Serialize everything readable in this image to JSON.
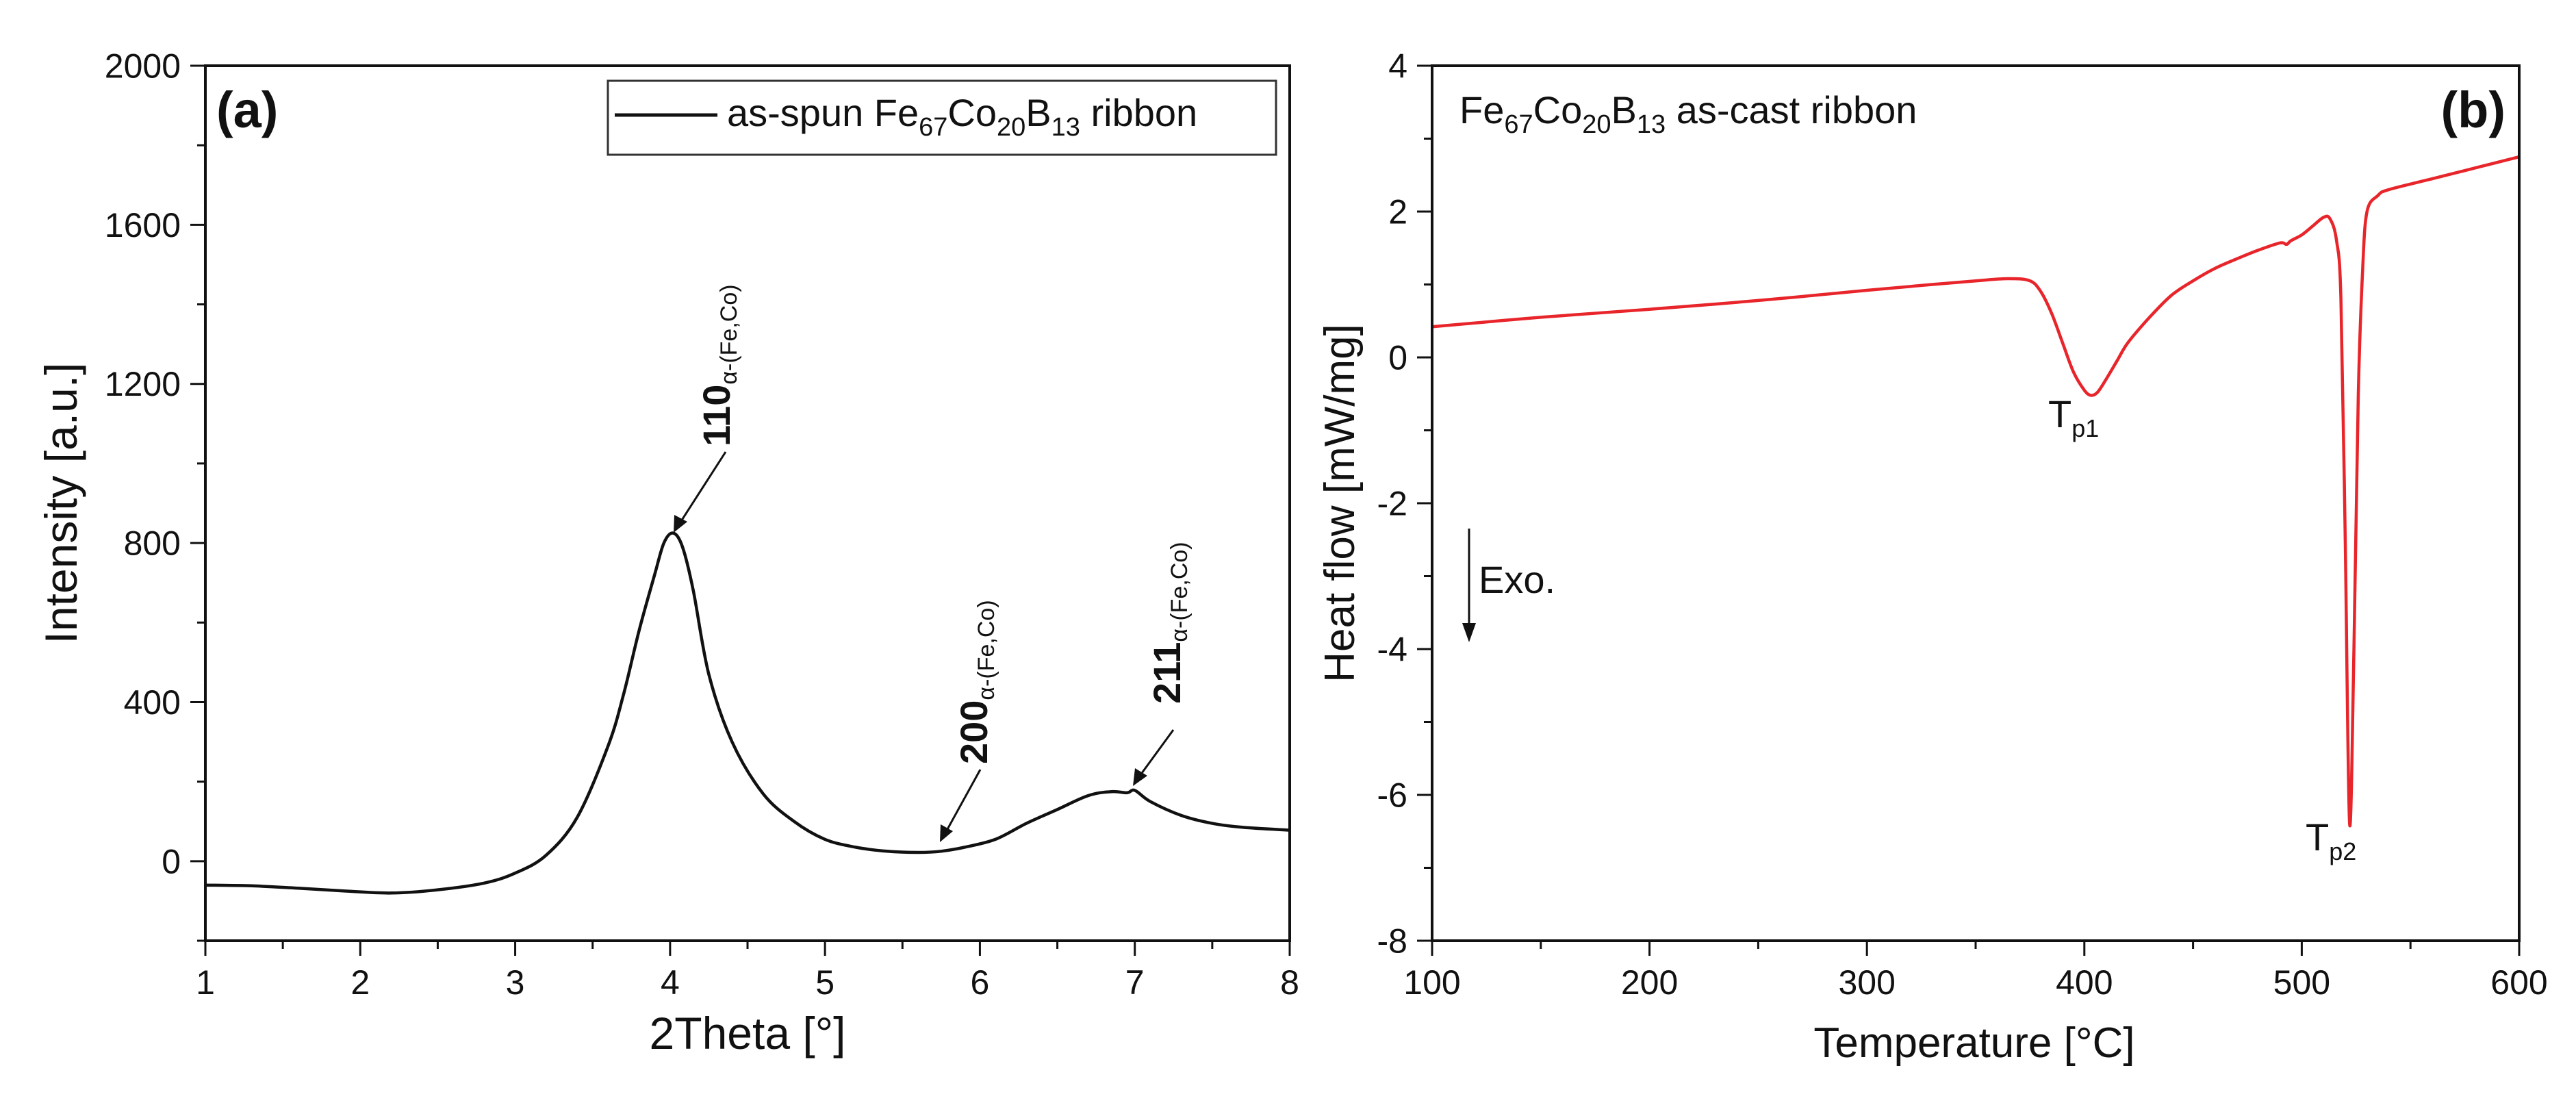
{
  "chart_data": [
    {
      "panel": "(a)",
      "type": "line",
      "xlabel": "2Theta [°]",
      "ylabel": "Intensity [a.u.]",
      "xlim": [
        1,
        8
      ],
      "ylim": [
        -200,
        2000
      ],
      "xticks": [
        1,
        2,
        3,
        4,
        5,
        6,
        7,
        8
      ],
      "yticks": [
        0,
        400,
        800,
        1200,
        1600,
        2000
      ],
      "legend": {
        "prefix": "as-spun Fe",
        "n1": "67",
        "mid1": "Co",
        "n2": "20",
        "mid2": "B",
        "n3": "13",
        "suffix": " ribbon",
        "placement": "top-right",
        "color": "#111111"
      },
      "series": [
        {
          "name": "as-spun Fe67Co20B13 ribbon",
          "color": "#111111",
          "x": [
            1.0,
            1.3,
            1.6,
            1.9,
            2.2,
            2.5,
            2.8,
            3.0,
            3.2,
            3.4,
            3.6,
            3.7,
            3.8,
            3.9,
            3.96,
            4.02,
            4.08,
            4.15,
            4.25,
            4.4,
            4.6,
            4.8,
            5.0,
            5.2,
            5.4,
            5.6,
            5.75,
            5.9,
            6.1,
            6.3,
            6.5,
            6.7,
            6.85,
            6.95,
            7.0,
            7.1,
            7.3,
            7.5,
            7.7,
            8.0
          ],
          "y": [
            -60,
            -62,
            -68,
            -75,
            -80,
            -72,
            -55,
            -30,
            15,
            110,
            290,
            420,
            580,
            720,
            800,
            825,
            790,
            680,
            470,
            300,
            170,
            100,
            55,
            35,
            25,
            22,
            25,
            35,
            55,
            95,
            130,
            165,
            175,
            172,
            178,
            150,
            115,
            95,
            85,
            78
          ]
        }
      ],
      "annotations": [
        {
          "label": "110",
          "sub": "α-(Fe,Co)",
          "x": 4.02,
          "y": 825
        },
        {
          "label": "200",
          "sub": "α-(Fe,Co)",
          "x": 5.75,
          "y": 25
        },
        {
          "label": "211",
          "sub": "α-(Fe,Co)",
          "x": 6.98,
          "y": 178
        }
      ]
    },
    {
      "panel": "(b)",
      "type": "line",
      "xlabel": "Temperature [°C]",
      "ylabel": "Heat flow [mW/mg]",
      "xlim": [
        100,
        600
      ],
      "ylim": [
        -8,
        4
      ],
      "xticks": [
        100,
        200,
        300,
        400,
        500,
        600
      ],
      "yticks": [
        -8,
        -6,
        -4,
        -2,
        0,
        2,
        4
      ],
      "title": {
        "prefix": "Fe",
        "n1": "67",
        "mid1": "Co",
        "n2": "20",
        "mid2": "B",
        "n3": "13",
        "suffix": " as-cast ribbon"
      },
      "exo_label": "Exo.",
      "series": [
        {
          "name": "Fe67Co20B13 as-cast ribbon",
          "color": "#e8252a",
          "x": [
            100,
            150,
            200,
            250,
            300,
            330,
            350,
            365,
            375,
            380,
            385,
            390,
            395,
            400,
            403,
            406,
            410,
            415,
            420,
            430,
            440,
            450,
            460,
            470,
            480,
            490,
            493,
            495,
            500,
            505,
            510,
            513,
            516,
            518,
            520,
            522,
            524,
            526,
            528,
            530,
            535,
            540,
            560,
            580,
            600
          ],
          "y": [
            0.42,
            0.55,
            0.66,
            0.78,
            0.92,
            1.0,
            1.05,
            1.08,
            1.05,
            0.9,
            0.6,
            0.2,
            -0.2,
            -0.45,
            -0.52,
            -0.48,
            -0.3,
            -0.05,
            0.2,
            0.55,
            0.85,
            1.05,
            1.22,
            1.35,
            1.47,
            1.57,
            1.55,
            1.6,
            1.68,
            1.8,
            1.92,
            1.9,
            1.6,
            0.8,
            -2.5,
            -6.4,
            -4.0,
            -0.5,
            1.2,
            2.0,
            2.22,
            2.3,
            2.45,
            2.6,
            2.75
          ]
        }
      ],
      "annotations": [
        {
          "label": "T",
          "sub": "p1",
          "x": 404,
          "y": -0.52
        },
        {
          "label": "T",
          "sub": "p2",
          "x": 522,
          "y": -6.4
        }
      ]
    }
  ]
}
